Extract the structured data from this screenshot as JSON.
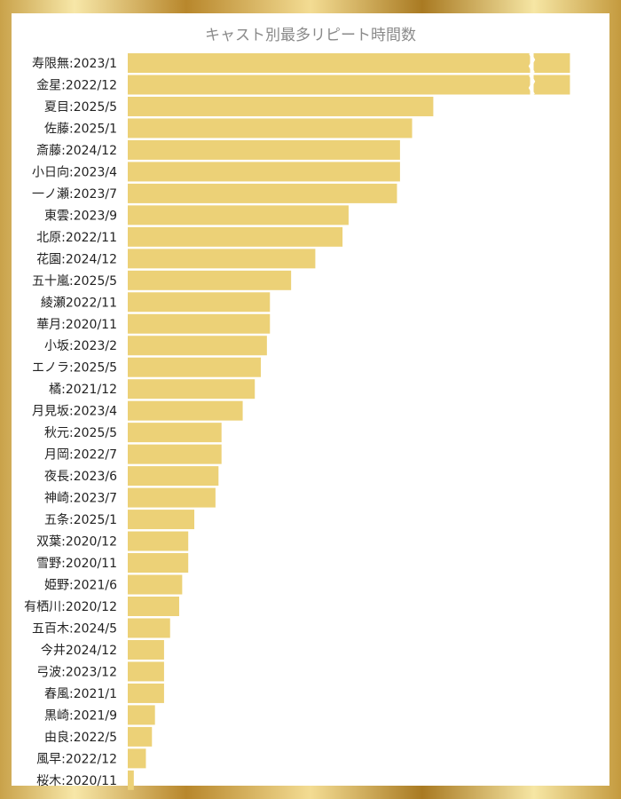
{
  "chart_data": {
    "type": "bar",
    "orientation": "horizontal",
    "title": "キャスト別最多リピート時間数",
    "bar_color": "#ecd177",
    "axis_break": true,
    "xlim": [
      0,
      140
    ],
    "categories": [
      "寿限無:2023/1",
      "金星:2022/12",
      "夏目:2025/5",
      "佐藤:2025/1",
      "斎藤:2024/12",
      "小日向:2023/4",
      "一ノ瀬:2023/7",
      "東雲:2023/9",
      "北原:2022/11",
      "花園:2024/12",
      "五十嵐:2025/5",
      "綾瀬2022/11",
      "華月:2020/11",
      "小坂:2023/2",
      "エノラ:2025/5",
      "橘:2021/12",
      "月見坂:2023/4",
      "秋元:2025/5",
      "月岡:2022/7",
      "夜長:2023/6",
      "神崎:2023/7",
      "五条:2025/1",
      "双葉:2020/12",
      "雪野:2020/11",
      "姫野:2021/6",
      "有栖川:2020/12",
      "五百木:2024/5",
      "今井2024/12",
      "弓波:2023/12",
      "春風:2021/1",
      "黒崎:2021/9",
      "由良:2022/5",
      "風早:2022/12",
      "桜木:2020/11"
    ],
    "values": [
      150,
      148,
      101,
      94,
      90,
      90,
      89,
      73,
      71,
      62,
      54,
      47,
      47,
      46,
      44,
      42,
      38,
      31,
      31,
      30,
      29,
      22,
      20,
      20,
      18,
      17,
      14,
      12,
      12,
      12,
      9,
      8,
      6,
      2
    ]
  }
}
